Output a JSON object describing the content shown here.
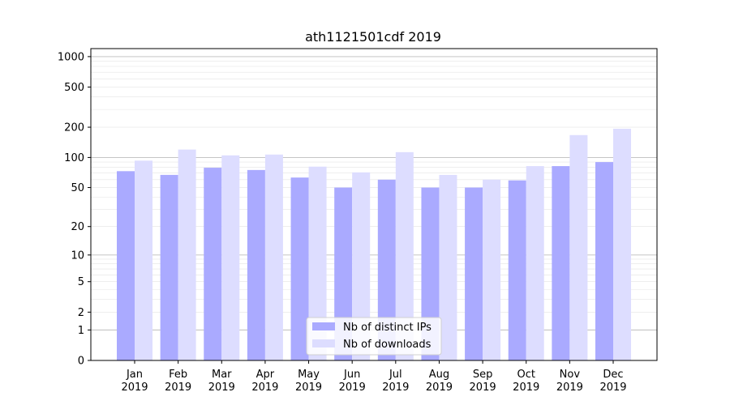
{
  "chart_data": {
    "type": "bar",
    "title": "ath1121501cdf 2019",
    "xlabel": "",
    "ylabel": "",
    "yscale": "log",
    "grid": "y",
    "legend_position": "bottom-center",
    "categories": [
      [
        "Jan",
        "2019"
      ],
      [
        "Feb",
        "2019"
      ],
      [
        "Mar",
        "2019"
      ],
      [
        "Apr",
        "2019"
      ],
      [
        "May",
        "2019"
      ],
      [
        "Jun",
        "2019"
      ],
      [
        "Jul",
        "2019"
      ],
      [
        "Aug",
        "2019"
      ],
      [
        "Sep",
        "2019"
      ],
      [
        "Oct",
        "2019"
      ],
      [
        "Nov",
        "2019"
      ],
      [
        "Dec",
        "2019"
      ]
    ],
    "yticks": [
      0,
      1,
      2,
      5,
      10,
      20,
      50,
      100,
      200,
      500,
      1000
    ],
    "ylim": [
      0,
      1200
    ],
    "series": [
      {
        "name": "Nb of distinct IPs",
        "color": "#aaaaff",
        "values": [
          73,
          67,
          79,
          75,
          63,
          50,
          60,
          50,
          50,
          59,
          82,
          90
        ]
      },
      {
        "name": "Nb of downloads",
        "color": "#ddddff",
        "values": [
          93,
          120,
          105,
          107,
          81,
          71,
          113,
          67,
          60,
          82,
          167,
          193
        ]
      }
    ]
  }
}
